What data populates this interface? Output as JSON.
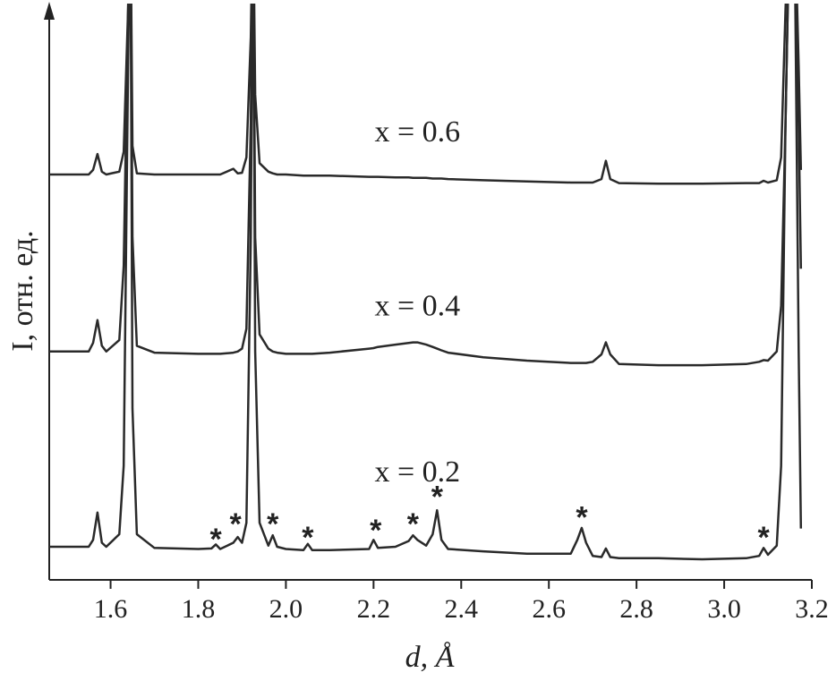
{
  "chart_data": {
    "type": "line",
    "x_label": "d, Å",
    "y_label": "I, отн. ед.",
    "xlim": [
      1.46,
      3.2
    ],
    "ylim": [
      0,
      100
    ],
    "xticks": [
      1.6,
      1.8,
      {
        "value": 2,
        "label": "2.0"
      },
      2.2,
      2.4,
      2.6,
      2.8,
      {
        "value": 3,
        "label": "3.0"
      },
      3.2
    ],
    "x": [
      1.46,
      1.5,
      1.55,
      1.56,
      1.57,
      1.58,
      1.59,
      1.62,
      1.63,
      1.64,
      1.645,
      1.65,
      1.66,
      1.7,
      1.8,
      1.83,
      1.84,
      1.85,
      1.88,
      1.89,
      1.9,
      1.91,
      1.92,
      1.925,
      1.93,
      1.94,
      1.96,
      1.97,
      1.98,
      2.0,
      2.04,
      2.05,
      2.06,
      2.1,
      2.19,
      2.2,
      2.21,
      2.25,
      2.28,
      2.29,
      2.3,
      2.32,
      2.335,
      2.345,
      2.355,
      2.37,
      2.45,
      2.55,
      2.65,
      2.665,
      2.675,
      2.685,
      2.7,
      2.72,
      2.73,
      2.74,
      2.76,
      2.85,
      2.95,
      3.05,
      3.08,
      3.09,
      3.1,
      3.12,
      3.13,
      3.14,
      3.15,
      3.16,
      3.17,
      3.175
    ],
    "series": [
      {
        "name": "x = 0.6",
        "color": "#2a2a2a",
        "label_at": [
          2.3,
          78
        ],
        "values": [
          71,
          71,
          71,
          71.8,
          74.6,
          71.5,
          71,
          71.5,
          75,
          100,
          120,
          76,
          71.2,
          71,
          71,
          71,
          71,
          71,
          72,
          71.2,
          71.3,
          74,
          95,
          120,
          85,
          73,
          71.5,
          71.2,
          71,
          71,
          70.8,
          70.8,
          70.8,
          70.8,
          70.6,
          70.6,
          70.6,
          70.5,
          70.5,
          70.4,
          70.4,
          70.4,
          70.3,
          70.3,
          70.3,
          70.2,
          70,
          69.8,
          69.6,
          69.6,
          69.6,
          69.6,
          69.6,
          70.2,
          73.4,
          70.2,
          69.5,
          69.4,
          69.4,
          69.5,
          69.5,
          69.9,
          69.6,
          70,
          74,
          100,
          120,
          120,
          90,
          71.8
        ]
      },
      {
        "name": "x = 0.4",
        "color": "#2a2a2a",
        "label_at": [
          2.3,
          47.5
        ],
        "values": [
          40,
          40,
          40,
          41.5,
          45.5,
          41,
          40,
          42,
          55,
          100,
          120,
          60,
          41,
          39.8,
          39.6,
          39.6,
          39.6,
          39.6,
          39.8,
          40,
          40.5,
          44,
          80,
          120,
          60,
          43,
          40.5,
          40,
          39.8,
          39.6,
          39.6,
          39.6,
          39.6,
          39.8,
          40.5,
          40.6,
          40.8,
          41.2,
          41.5,
          41.6,
          41.6,
          41.2,
          40.8,
          40.5,
          40.2,
          39.8,
          39,
          38.4,
          38,
          38,
          38,
          38,
          38.2,
          39.5,
          41.6,
          39.5,
          37.8,
          37.6,
          37.6,
          37.8,
          38.2,
          38.5,
          38.4,
          40,
          48,
          80,
          120,
          120,
          80,
          54.5
        ]
      },
      {
        "name": "x = 0.2",
        "color": "#2a2a2a",
        "label_at": [
          2.3,
          18.5
        ],
        "values": [
          5.8,
          5.8,
          5.8,
          7,
          11.8,
          6.5,
          5.8,
          8,
          20,
          90,
          120,
          30,
          8,
          5.6,
          5.4,
          5.5,
          6.2,
          5.4,
          6.5,
          7.5,
          6.5,
          10,
          60,
          120,
          40,
          10,
          6,
          7.8,
          5.8,
          5.4,
          5.2,
          6.3,
          5.2,
          5.2,
          5.4,
          7,
          5.6,
          5.8,
          6.8,
          7.8,
          7,
          6,
          8,
          12.2,
          7,
          5.4,
          5,
          4.6,
          4.6,
          7,
          9.1,
          6.5,
          4.2,
          4,
          5.5,
          4,
          3.8,
          3.8,
          3.6,
          3.8,
          4.2,
          5.6,
          4.4,
          6,
          20,
          80,
          120,
          120,
          40,
          9
        ]
      }
    ],
    "annotations": [
      {
        "text": "*",
        "x": 1.84,
        "y": 7.5
      },
      {
        "text": "*",
        "x": 1.885,
        "y": 10.2
      },
      {
        "text": "*",
        "x": 1.97,
        "y": 10.2
      },
      {
        "text": "*",
        "x": 2.05,
        "y": 7.8
      },
      {
        "text": "*",
        "x": 2.205,
        "y": 9.1
      },
      {
        "text": "*",
        "x": 2.29,
        "y": 10.2
      },
      {
        "text": "*",
        "x": 2.345,
        "y": 15
      },
      {
        "text": "*",
        "x": 2.675,
        "y": 11.4
      },
      {
        "text": "*",
        "x": 3.09,
        "y": 7.8
      }
    ]
  }
}
